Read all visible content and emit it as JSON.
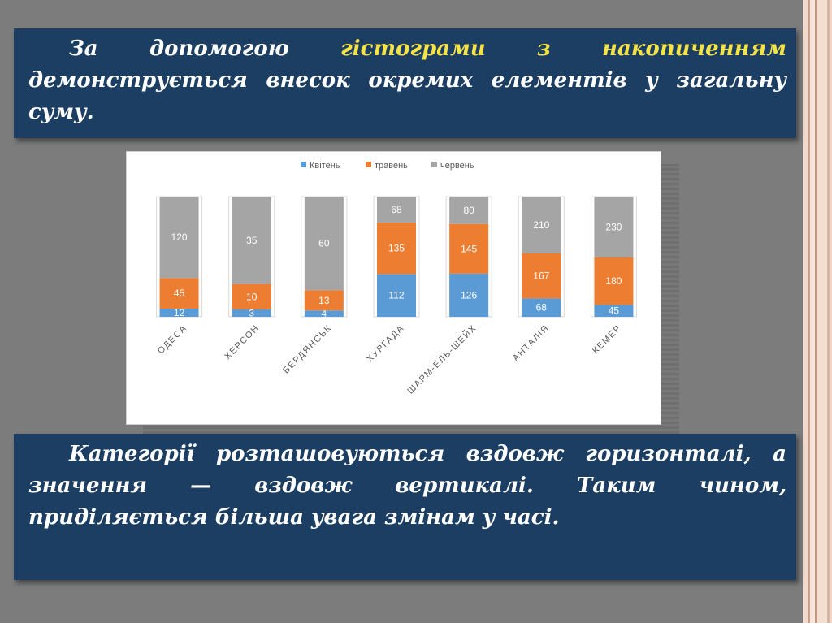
{
  "top_text": {
    "before": "За допомогою ",
    "highlight": "гістограми з накопиченням",
    "after": " демонструється внесок окремих елементів у загальну суму."
  },
  "bottom_text": "Категорії розташовуються вздовж горизонталі, а значення — вздовж вертикалі. Таким чином, приділяється більша увага змінам у часі.",
  "colors": {
    "series": [
      "#5b9bd5",
      "#ed7d31",
      "#a5a5a5"
    ],
    "text_box_bg": "#1d3e63",
    "highlight": "#f5e447"
  },
  "chart_data": {
    "type": "bar",
    "stacked": true,
    "categories": [
      "ОДЕСА",
      "ХЕРСОН",
      "БЕРДЯНСЬК",
      "ХУРГАДА",
      "ШАРМ-ЕЛЬ-ШЕЙХ",
      "АНТАЛІЯ",
      "КЕМЕР"
    ],
    "series": [
      {
        "name": "Квітень",
        "values": [
          12,
          3,
          4,
          112,
          126,
          68,
          45
        ]
      },
      {
        "name": "травень",
        "values": [
          45,
          10,
          13,
          135,
          145,
          167,
          180
        ]
      },
      {
        "name": "червень",
        "values": [
          120,
          35,
          60,
          68,
          80,
          210,
          230
        ]
      }
    ],
    "normalized_100_percent": true,
    "data_labels": true,
    "legend_position": "top",
    "value_axis_visible": false,
    "grid": false
  }
}
